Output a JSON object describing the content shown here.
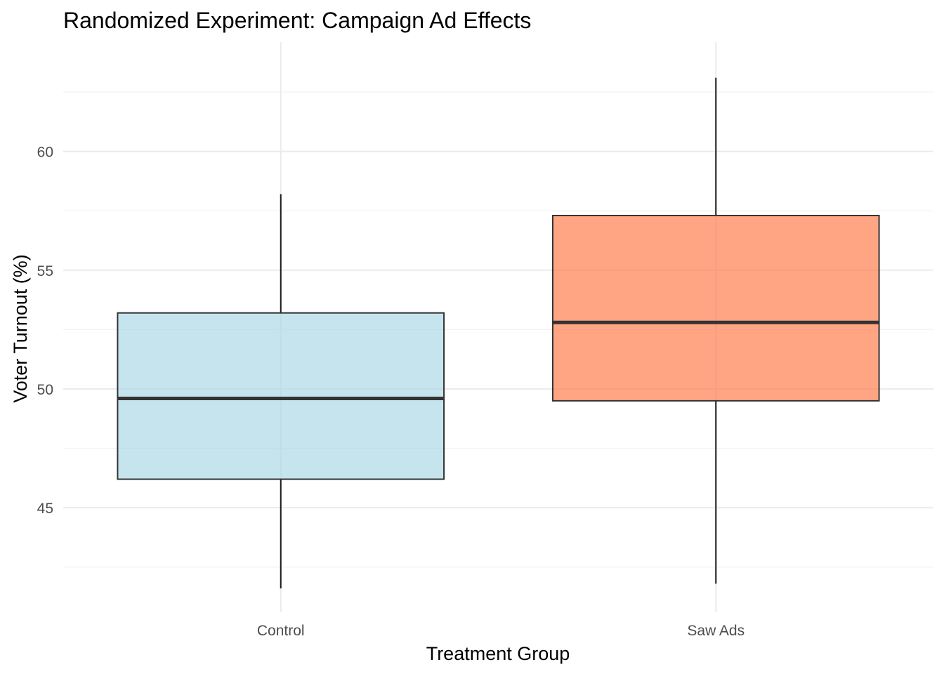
{
  "chart_data": {
    "type": "box",
    "title": "Randomized Experiment: Campaign Ad Effects",
    "xlabel": "Treatment Group",
    "ylabel": "Voter Turnout (%)",
    "categories": [
      "Control",
      "Saw Ads"
    ],
    "ylim": [
      40.6,
      64.6
    ],
    "y_ticks": [
      45,
      50,
      55,
      60
    ],
    "grid": true,
    "legend": "none",
    "series": [
      {
        "category": "Control",
        "whisker_low": 41.6,
        "q1": 46.2,
        "median": 49.6,
        "q3": 53.2,
        "whisker_high": 58.2,
        "color": "#add8e6"
      },
      {
        "category": "Saw Ads",
        "whisker_low": 41.8,
        "q1": 49.5,
        "median": 52.8,
        "q3": 57.3,
        "whisker_high": 63.1,
        "color": "#ff7f50"
      }
    ]
  }
}
